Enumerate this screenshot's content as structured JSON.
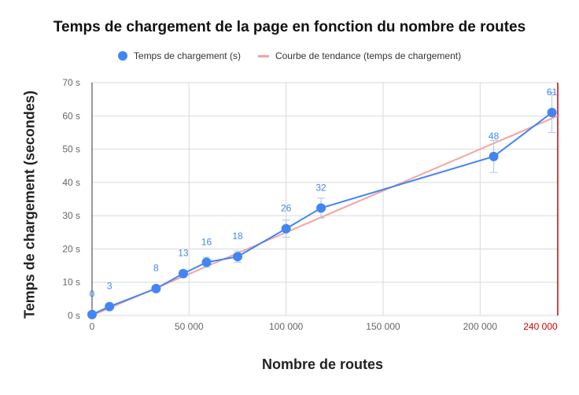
{
  "colors": {
    "series": "#4285f4",
    "trend": "#f4a3a3",
    "grid": "#d9d9d9",
    "axis_text": "#666666",
    "highlight_text": "#cc0000",
    "highlight_line": "#cc0000"
  },
  "chart_data": {
    "type": "line",
    "title": "Temps de chargement de la page en fonction du nombre de routes",
    "xlabel": "Nombre de routes",
    "ylabel": "Temps de chargement (secondes)",
    "xlim": [
      0,
      240000
    ],
    "ylim": [
      0,
      70
    ],
    "x_ticks": [
      {
        "value": 0,
        "label": "0"
      },
      {
        "value": 50000,
        "label": "50 000"
      },
      {
        "value": 100000,
        "label": "100 000"
      },
      {
        "value": 150000,
        "label": "150 000"
      },
      {
        "value": 200000,
        "label": "200 000"
      },
      {
        "value": 240000,
        "label": "240 000",
        "highlight": true
      }
    ],
    "y_ticks": [
      {
        "value": 0,
        "label": "0 s"
      },
      {
        "value": 10,
        "label": "10 s"
      },
      {
        "value": 20,
        "label": "20 s"
      },
      {
        "value": 30,
        "label": "30 s"
      },
      {
        "value": 40,
        "label": "40 s"
      },
      {
        "value": 50,
        "label": "50 s"
      },
      {
        "value": 60,
        "label": "60 s"
      },
      {
        "value": 70,
        "label": "70 s"
      }
    ],
    "grid": true,
    "legend_position": "top",
    "legend": [
      "Temps de chargement (s)",
      "Courbe de tendance (temps de chargement)"
    ],
    "series": [
      {
        "name": "Temps de chargement (s)",
        "points": [
          {
            "x": 0,
            "y": 0.3,
            "label": "0",
            "err": 0.8
          },
          {
            "x": 9000,
            "y": 2.7,
            "label": "3",
            "err": 0.5
          },
          {
            "x": 33000,
            "y": 8.1,
            "label": "8",
            "err": 0.8
          },
          {
            "x": 47000,
            "y": 12.6,
            "label": "13",
            "err": 1.0
          },
          {
            "x": 59000,
            "y": 16.0,
            "label": "16",
            "err": 1.5
          },
          {
            "x": 75000,
            "y": 17.7,
            "label": "18",
            "err": 1.7
          },
          {
            "x": 100000,
            "y": 26.1,
            "label": "26",
            "err": 2.6
          },
          {
            "x": 118000,
            "y": 32.3,
            "label": "32",
            "err": 3.0
          },
          {
            "x": 207000,
            "y": 47.8,
            "label": "48",
            "err": 4.8
          },
          {
            "x": 237000,
            "y": 61.0,
            "label": "61",
            "err": 6.0
          }
        ]
      }
    ],
    "trendline": {
      "name": "Courbe de tendance (temps de chargement)",
      "x": [
        0,
        240000
      ],
      "y": [
        -0.5,
        60.0
      ]
    }
  }
}
